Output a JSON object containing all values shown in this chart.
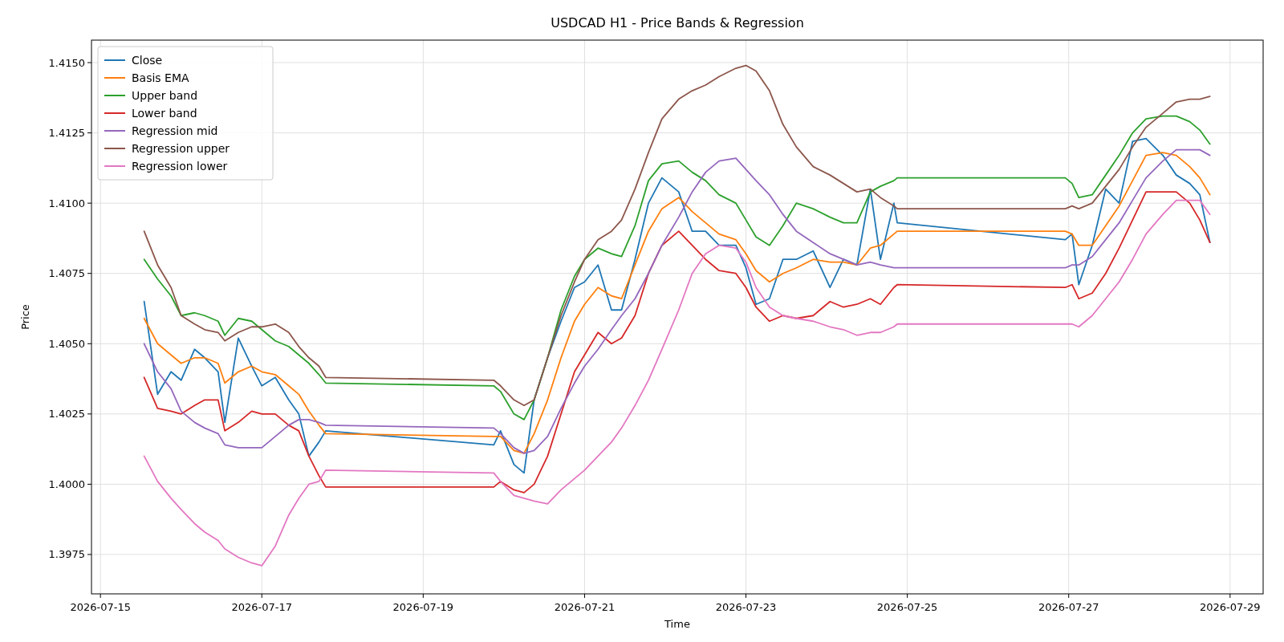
{
  "chart_data": {
    "type": "line",
    "title": "USDCAD H1 - Price Bands & Regression",
    "xlabel": "Time",
    "ylabel": "Price",
    "x": [
      "2026-07-15T13:00",
      "2026-07-15T17:00",
      "2026-07-15T21:00",
      "2026-07-16T00:00",
      "2026-07-16T04:00",
      "2026-07-16T07:00",
      "2026-07-16T11:00",
      "2026-07-16T13:00",
      "2026-07-16T17:00",
      "2026-07-16T21:00",
      "2026-07-17T00:00",
      "2026-07-17T04:00",
      "2026-07-17T08:00",
      "2026-07-17T11:00",
      "2026-07-17T14:00",
      "2026-07-17T17:00",
      "2026-07-17T19:00",
      "2026-07-19T21:00",
      "2026-07-19T23:00",
      "2026-07-20T03:00",
      "2026-07-20T06:00",
      "2026-07-20T09:00",
      "2026-07-20T13:00",
      "2026-07-20T17:00",
      "2026-07-20T21:00",
      "2026-07-21T00:00",
      "2026-07-21T04:00",
      "2026-07-21T08:00",
      "2026-07-21T11:00",
      "2026-07-21T15:00",
      "2026-07-21T19:00",
      "2026-07-21T23:00",
      "2026-07-22T04:00",
      "2026-07-22T08:00",
      "2026-07-22T12:00",
      "2026-07-22T16:00",
      "2026-07-22T21:00",
      "2026-07-23T00:00",
      "2026-07-23T03:00",
      "2026-07-23T07:00",
      "2026-07-23T11:00",
      "2026-07-23T15:00",
      "2026-07-23T20:00",
      "2026-07-24T01:00",
      "2026-07-24T05:00",
      "2026-07-24T09:00",
      "2026-07-24T13:00",
      "2026-07-24T16:00",
      "2026-07-24T20:00",
      "2026-07-24T21:00",
      "2026-07-26T23:00",
      "2026-07-27T01:00",
      "2026-07-27T03:00",
      "2026-07-27T07:00",
      "2026-07-27T11:00",
      "2026-07-27T15:00",
      "2026-07-27T19:00",
      "2026-07-27T23:00",
      "2026-07-28T04:00",
      "2026-07-28T08:00",
      "2026-07-28T12:00",
      "2026-07-28T15:00",
      "2026-07-28T18:00"
    ],
    "series": [
      {
        "name": "Close",
        "color": "#1f77b4",
        "values": [
          1.4065,
          1.4032,
          1.404,
          1.4037,
          1.4048,
          1.4045,
          1.404,
          1.4022,
          1.4052,
          1.4042,
          1.4035,
          1.4038,
          1.403,
          1.4025,
          1.401,
          1.4015,
          1.4019,
          1.4014,
          1.4019,
          1.4007,
          1.4004,
          1.403,
          1.4045,
          1.4058,
          1.407,
          1.4072,
          1.4078,
          1.4062,
          1.4062,
          1.408,
          1.41,
          1.4109,
          1.4104,
          1.409,
          1.409,
          1.4085,
          1.4085,
          1.4077,
          1.4064,
          1.4066,
          1.408,
          1.408,
          1.4083,
          1.407,
          1.408,
          1.4078,
          1.4105,
          1.408,
          1.41,
          1.4093,
          1.4087,
          1.4089,
          1.4071,
          1.4085,
          1.4105,
          1.41,
          1.4122,
          1.4123,
          1.4117,
          1.411,
          1.4107,
          1.4103,
          1.4086
        ]
      },
      {
        "name": "Basis EMA",
        "color": "#ff7f0e",
        "values": [
          1.4059,
          1.405,
          1.4046,
          1.4043,
          1.4045,
          1.4045,
          1.4043,
          1.4036,
          1.404,
          1.4042,
          1.404,
          1.4039,
          1.4035,
          1.4032,
          1.4026,
          1.4021,
          1.4018,
          1.4017,
          1.4017,
          1.4012,
          1.4011,
          1.4018,
          1.403,
          1.4045,
          1.4058,
          1.4064,
          1.407,
          1.4067,
          1.4066,
          1.4078,
          1.409,
          1.4098,
          1.4102,
          1.4097,
          1.4093,
          1.4089,
          1.4087,
          1.4082,
          1.4076,
          1.4072,
          1.4075,
          1.4077,
          1.408,
          1.4079,
          1.4079,
          1.4078,
          1.4084,
          1.4085,
          1.4089,
          1.409,
          1.409,
          1.4089,
          1.4085,
          1.4085,
          1.4092,
          1.4099,
          1.4108,
          1.4117,
          1.4118,
          1.4117,
          1.4113,
          1.4109,
          1.4103
        ]
      },
      {
        "name": "Upper band",
        "color": "#2ca02c",
        "values": [
          1.408,
          1.4073,
          1.4067,
          1.406,
          1.4061,
          1.406,
          1.4058,
          1.4053,
          1.4059,
          1.4058,
          1.4055,
          1.4051,
          1.4049,
          1.4046,
          1.4043,
          1.4039,
          1.4036,
          1.4035,
          1.4033,
          1.4025,
          1.4023,
          1.403,
          1.4045,
          1.4062,
          1.4074,
          1.408,
          1.4084,
          1.4082,
          1.4081,
          1.4092,
          1.4108,
          1.4114,
          1.4115,
          1.4111,
          1.4108,
          1.4103,
          1.41,
          1.4094,
          1.4088,
          1.4085,
          1.4092,
          1.41,
          1.4098,
          1.4095,
          1.4093,
          1.4093,
          1.4104,
          1.4106,
          1.4108,
          1.4109,
          1.4109,
          1.4107,
          1.4102,
          1.4103,
          1.411,
          1.4117,
          1.4125,
          1.413,
          1.4131,
          1.4131,
          1.4129,
          1.4126,
          1.4121
        ]
      },
      {
        "name": "Lower band",
        "color": "#d62728",
        "values": [
          1.4038,
          1.4027,
          1.4026,
          1.4025,
          1.4028,
          1.403,
          1.403,
          1.4019,
          1.4022,
          1.4026,
          1.4025,
          1.4025,
          1.4021,
          1.4019,
          1.401,
          1.4003,
          1.3999,
          1.3999,
          1.4001,
          1.3998,
          1.3997,
          1.4,
          1.401,
          1.4025,
          1.404,
          1.4046,
          1.4054,
          1.405,
          1.4052,
          1.406,
          1.4075,
          1.4085,
          1.409,
          1.4085,
          1.408,
          1.4076,
          1.4075,
          1.407,
          1.4063,
          1.4058,
          1.406,
          1.4059,
          1.406,
          1.4065,
          1.4063,
          1.4064,
          1.4066,
          1.4064,
          1.407,
          1.4071,
          1.407,
          1.4071,
          1.4066,
          1.4068,
          1.4075,
          1.4084,
          1.4094,
          1.4104,
          1.4104,
          1.4104,
          1.41,
          1.4094,
          1.4086
        ]
      },
      {
        "name": "Regression mid",
        "color": "#9467bd",
        "values": [
          1.405,
          1.404,
          1.4034,
          1.4026,
          1.4022,
          1.402,
          1.4018,
          1.4014,
          1.4013,
          1.4013,
          1.4013,
          1.4017,
          1.4021,
          1.4023,
          1.4023,
          1.4022,
          1.4021,
          1.402,
          1.4018,
          1.4013,
          1.4011,
          1.4012,
          1.4017,
          1.4027,
          1.4036,
          1.4042,
          1.4048,
          1.4055,
          1.406,
          1.4066,
          1.4075,
          1.4085,
          1.4095,
          1.4104,
          1.4111,
          1.4115,
          1.4116,
          1.4112,
          1.4108,
          1.4103,
          1.4096,
          1.409,
          1.4086,
          1.4082,
          1.408,
          1.4078,
          1.4079,
          1.4078,
          1.4077,
          1.4077,
          1.4077,
          1.4078,
          1.4078,
          1.4081,
          1.4087,
          1.4093,
          1.4101,
          1.4109,
          1.4115,
          1.4119,
          1.4119,
          1.4119,
          1.4117
        ]
      },
      {
        "name": "Regression upper",
        "color": "#8c564b",
        "values": [
          1.409,
          1.4078,
          1.407,
          1.406,
          1.4057,
          1.4055,
          1.4054,
          1.4051,
          1.4054,
          1.4056,
          1.4056,
          1.4057,
          1.4054,
          1.4049,
          1.4045,
          1.4042,
          1.4038,
          1.4037,
          1.4035,
          1.403,
          1.4028,
          1.403,
          1.4045,
          1.406,
          1.4072,
          1.408,
          1.4087,
          1.409,
          1.4094,
          1.4105,
          1.4118,
          1.413,
          1.4137,
          1.414,
          1.4142,
          1.4145,
          1.4148,
          1.4149,
          1.4147,
          1.414,
          1.4128,
          1.412,
          1.4113,
          1.411,
          1.4107,
          1.4104,
          1.4105,
          1.4102,
          1.4099,
          1.4098,
          1.4098,
          1.4099,
          1.4098,
          1.41,
          1.4106,
          1.4112,
          1.412,
          1.4127,
          1.4132,
          1.4136,
          1.4137,
          1.4137,
          1.4138
        ]
      },
      {
        "name": "Regression lower",
        "color": "#e377c2",
        "values": [
          1.401,
          1.4001,
          1.3995,
          1.3991,
          1.3986,
          1.3983,
          1.398,
          1.3977,
          1.3974,
          1.3972,
          1.3971,
          1.3978,
          1.3989,
          1.3995,
          1.4,
          1.4001,
          1.4005,
          1.4004,
          1.4001,
          1.3996,
          1.3995,
          1.3994,
          1.3993,
          1.3998,
          1.4002,
          1.4005,
          1.401,
          1.4015,
          1.402,
          1.4028,
          1.4037,
          1.4048,
          1.4062,
          1.4075,
          1.4082,
          1.4085,
          1.4084,
          1.4079,
          1.407,
          1.4063,
          1.406,
          1.4059,
          1.4058,
          1.4056,
          1.4055,
          1.4053,
          1.4054,
          1.4054,
          1.4056,
          1.4057,
          1.4057,
          1.4057,
          1.4056,
          1.406,
          1.4066,
          1.4072,
          1.408,
          1.4089,
          1.4096,
          1.4101,
          1.4101,
          1.4101,
          1.4096
        ]
      }
    ],
    "xlim": [
      "2026-07-14T21:20",
      "2026-07-29T09:50"
    ],
    "xticks": [
      "2026-07-15",
      "2026-07-17",
      "2026-07-19",
      "2026-07-21",
      "2026-07-23",
      "2026-07-25",
      "2026-07-27",
      "2026-07-29"
    ],
    "ylim": [
      1.3961,
      1.4158
    ],
    "yticks": [
      {
        "value": 1.3975,
        "label": "1.3975"
      },
      {
        "value": 1.4,
        "label": "1.4000"
      },
      {
        "value": 1.4025,
        "label": "1.4025"
      },
      {
        "value": 1.405,
        "label": "1.4050"
      },
      {
        "value": 1.4075,
        "label": "1.4075"
      },
      {
        "value": 1.41,
        "label": "1.4100"
      },
      {
        "value": 1.4125,
        "label": "1.4125"
      },
      {
        "value": 1.415,
        "label": "1.4150"
      }
    ],
    "grid": true,
    "legend": "top left",
    "line_style": "solid",
    "marker": "none"
  }
}
